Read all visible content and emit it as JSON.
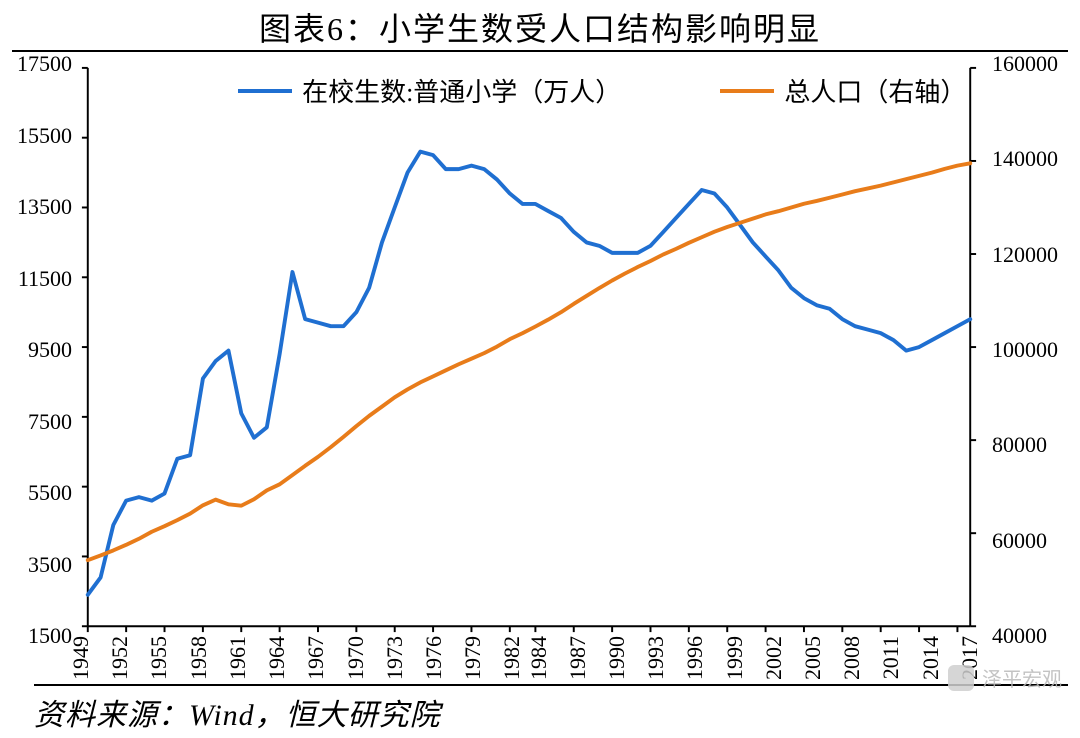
{
  "title": "图表6：小学生数受人口结构影响明显",
  "source": "资料来源：Wind，恒大研究院",
  "watermark": "泽平宏观",
  "chart": {
    "type": "line-dual-axis",
    "background_color": "#ffffff",
    "axis_color": "#000000",
    "tick_len": 6,
    "line_width": 3,
    "title_fontsize": 32,
    "axis_label_fontsize": 22,
    "xtick_rotation": -90,
    "x": {
      "min": 1949,
      "max": 2018,
      "ticks": [
        1949,
        1952,
        1955,
        1958,
        1961,
        1964,
        1967,
        1970,
        1973,
        1976,
        1979,
        1982,
        1984,
        1987,
        1990,
        1993,
        1996,
        1999,
        2002,
        2005,
        2008,
        2011,
        2014,
        2017
      ]
    },
    "y_left": {
      "min": 1500,
      "max": 17500,
      "ticks": [
        1500,
        3500,
        5500,
        7500,
        9500,
        11500,
        13500,
        15500,
        17500
      ]
    },
    "y_right": {
      "min": 40000,
      "max": 160000,
      "ticks": [
        40000,
        60000,
        80000,
        100000,
        120000,
        140000,
        160000
      ]
    },
    "series": [
      {
        "name": "在校生数:普通小学（万人）",
        "axis": "left",
        "color": "#1f6fd1",
        "data": [
          [
            1949,
            2400
          ],
          [
            1950,
            2900
          ],
          [
            1951,
            4400
          ],
          [
            1952,
            5100
          ],
          [
            1953,
            5200
          ],
          [
            1954,
            5100
          ],
          [
            1955,
            5300
          ],
          [
            1956,
            6300
          ],
          [
            1957,
            6400
          ],
          [
            1958,
            8600
          ],
          [
            1959,
            9100
          ],
          [
            1960,
            9400
          ],
          [
            1961,
            7600
          ],
          [
            1962,
            6900
          ],
          [
            1963,
            7200
          ],
          [
            1964,
            9300
          ],
          [
            1965,
            11650
          ],
          [
            1966,
            10300
          ],
          [
            1967,
            10200
          ],
          [
            1968,
            10100
          ],
          [
            1969,
            10100
          ],
          [
            1970,
            10500
          ],
          [
            1971,
            11200
          ],
          [
            1972,
            12500
          ],
          [
            1973,
            13500
          ],
          [
            1974,
            14500
          ],
          [
            1975,
            15100
          ],
          [
            1976,
            15000
          ],
          [
            1977,
            14600
          ],
          [
            1978,
            14600
          ],
          [
            1979,
            14700
          ],
          [
            1980,
            14600
          ],
          [
            1981,
            14300
          ],
          [
            1982,
            13900
          ],
          [
            1983,
            13600
          ],
          [
            1984,
            13600
          ],
          [
            1985,
            13400
          ],
          [
            1986,
            13200
          ],
          [
            1987,
            12800
          ],
          [
            1988,
            12500
          ],
          [
            1989,
            12400
          ],
          [
            1990,
            12200
          ],
          [
            1991,
            12200
          ],
          [
            1992,
            12200
          ],
          [
            1993,
            12400
          ],
          [
            1994,
            12800
          ],
          [
            1995,
            13200
          ],
          [
            1996,
            13600
          ],
          [
            1997,
            14000
          ],
          [
            1998,
            13900
          ],
          [
            1999,
            13500
          ],
          [
            2000,
            13000
          ],
          [
            2001,
            12500
          ],
          [
            2002,
            12100
          ],
          [
            2003,
            11700
          ],
          [
            2004,
            11200
          ],
          [
            2005,
            10900
          ],
          [
            2006,
            10700
          ],
          [
            2007,
            10600
          ],
          [
            2008,
            10300
          ],
          [
            2009,
            10100
          ],
          [
            2010,
            10000
          ],
          [
            2011,
            9900
          ],
          [
            2012,
            9700
          ],
          [
            2013,
            9400
          ],
          [
            2014,
            9500
          ],
          [
            2015,
            9700
          ],
          [
            2016,
            9900
          ],
          [
            2017,
            10100
          ],
          [
            2018,
            10300
          ]
        ]
      },
      {
        "name": "总人口（右轴）",
        "axis": "right",
        "color": "#e87c1a",
        "data": [
          [
            1949,
            54200
          ],
          [
            1950,
            55200
          ],
          [
            1951,
            56300
          ],
          [
            1952,
            57500
          ],
          [
            1953,
            58800
          ],
          [
            1954,
            60300
          ],
          [
            1955,
            61500
          ],
          [
            1956,
            62800
          ],
          [
            1957,
            64200
          ],
          [
            1958,
            66000
          ],
          [
            1959,
            67200
          ],
          [
            1960,
            66200
          ],
          [
            1961,
            65900
          ],
          [
            1962,
            67300
          ],
          [
            1963,
            69200
          ],
          [
            1964,
            70500
          ],
          [
            1965,
            72500
          ],
          [
            1966,
            74500
          ],
          [
            1967,
            76400
          ],
          [
            1968,
            78500
          ],
          [
            1969,
            80700
          ],
          [
            1970,
            83000
          ],
          [
            1971,
            85200
          ],
          [
            1972,
            87200
          ],
          [
            1973,
            89200
          ],
          [
            1974,
            90900
          ],
          [
            1975,
            92400
          ],
          [
            1976,
            93700
          ],
          [
            1977,
            95000
          ],
          [
            1978,
            96300
          ],
          [
            1979,
            97500
          ],
          [
            1980,
            98700
          ],
          [
            1981,
            100100
          ],
          [
            1982,
            101700
          ],
          [
            1983,
            103000
          ],
          [
            1984,
            104400
          ],
          [
            1985,
            105900
          ],
          [
            1986,
            107500
          ],
          [
            1987,
            109300
          ],
          [
            1988,
            111000
          ],
          [
            1989,
            112700
          ],
          [
            1990,
            114300
          ],
          [
            1991,
            115800
          ],
          [
            1992,
            117200
          ],
          [
            1993,
            118500
          ],
          [
            1994,
            119900
          ],
          [
            1995,
            121100
          ],
          [
            1996,
            122400
          ],
          [
            1997,
            123600
          ],
          [
            1998,
            124800
          ],
          [
            1999,
            125800
          ],
          [
            2000,
            126700
          ],
          [
            2001,
            127600
          ],
          [
            2002,
            128500
          ],
          [
            2003,
            129200
          ],
          [
            2004,
            130000
          ],
          [
            2005,
            130800
          ],
          [
            2006,
            131400
          ],
          [
            2007,
            132100
          ],
          [
            2008,
            132800
          ],
          [
            2009,
            133500
          ],
          [
            2010,
            134100
          ],
          [
            2011,
            134700
          ],
          [
            2012,
            135400
          ],
          [
            2013,
            136100
          ],
          [
            2014,
            136800
          ],
          [
            2015,
            137500
          ],
          [
            2016,
            138300
          ],
          [
            2017,
            139000
          ],
          [
            2018,
            139500
          ]
        ]
      }
    ]
  }
}
